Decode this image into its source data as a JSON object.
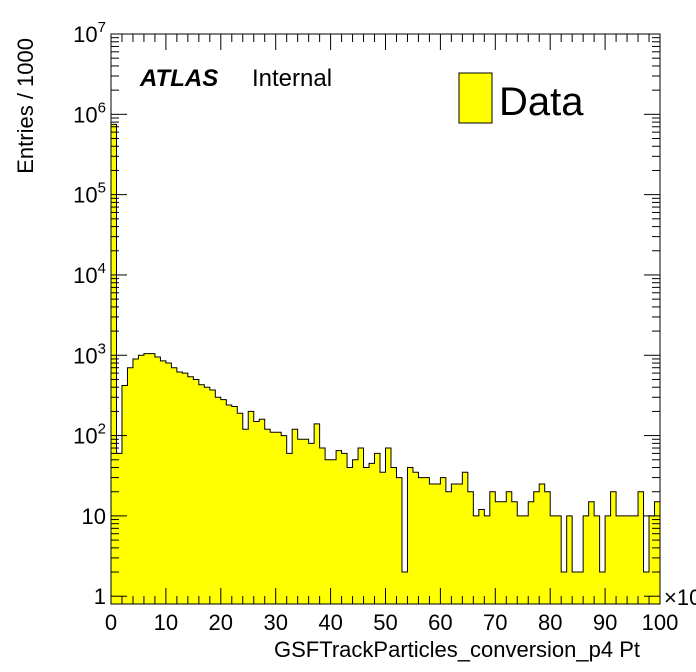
{
  "chart_data": {
    "type": "histogram",
    "xlabel": "GSFTrackParticles_conversion_p4 Pt",
    "ylabel": "Entries / 1000",
    "x_multiplier_label": "×10",
    "xlim": [
      0,
      100
    ],
    "ylim": [
      0.8,
      10000000
    ],
    "y_scale": "log",
    "bin_width": 1,
    "x_ticks": [
      0,
      10,
      20,
      30,
      40,
      50,
      60,
      70,
      80,
      90,
      100
    ],
    "x_tick_labels": [
      "0",
      "10",
      "20",
      "30",
      "40",
      "50",
      "60",
      "70",
      "80",
      "90",
      "100"
    ],
    "y_ticks": [
      {
        "value": 1,
        "base": "1",
        "exp": ""
      },
      {
        "value": 10,
        "base": "10",
        "exp": ""
      },
      {
        "value": 100,
        "base": "10",
        "exp": "2"
      },
      {
        "value": 1000,
        "base": "10",
        "exp": "3"
      },
      {
        "value": 10000,
        "base": "10",
        "exp": "4"
      },
      {
        "value": 100000,
        "base": "10",
        "exp": "5"
      },
      {
        "value": 1000000,
        "base": "10",
        "exp": "6"
      },
      {
        "value": 10000000,
        "base": "10",
        "exp": "7"
      }
    ],
    "series": [
      {
        "name": "Data",
        "color": "#ffff00",
        "values": [
          750000,
          60,
          420,
          700,
          900,
          1000,
          1050,
          1050,
          950,
          850,
          800,
          700,
          620,
          600,
          540,
          500,
          430,
          400,
          370,
          300,
          280,
          240,
          230,
          190,
          120,
          200,
          150,
          160,
          120,
          110,
          110,
          100,
          60,
          120,
          90,
          90,
          80,
          140,
          70,
          50,
          50,
          65,
          60,
          40,
          50,
          70,
          40,
          45,
          60,
          35,
          70,
          40,
          30,
          2,
          40,
          35,
          30,
          30,
          25,
          25,
          30,
          20,
          25,
          25,
          35,
          20,
          10,
          12,
          10,
          20,
          15,
          15,
          20,
          15,
          10,
          10,
          15,
          20,
          25,
          20,
          10,
          10,
          2,
          10,
          2,
          2,
          10,
          15,
          10,
          2,
          10,
          20,
          10,
          10,
          10,
          10,
          20,
          2,
          10,
          15
        ]
      }
    ],
    "legend": {
      "entries": [
        "Data"
      ],
      "position": "top-right"
    },
    "annotations": {
      "experiment": "ATLAS",
      "status": "Internal"
    },
    "grid": false
  }
}
